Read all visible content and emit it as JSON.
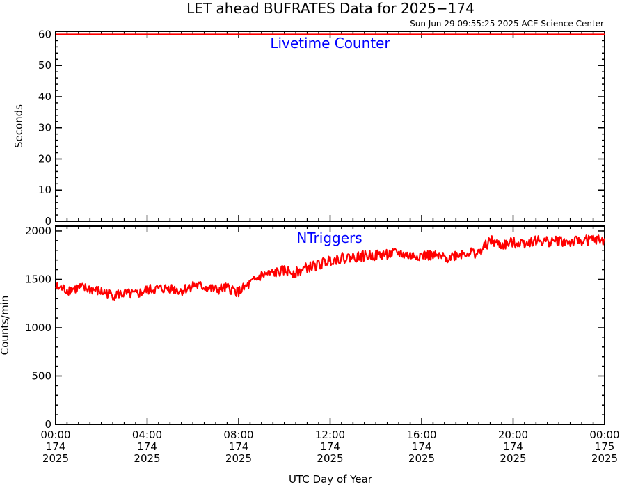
{
  "figure": {
    "title": "LET ahead BUFRATES Data for 2025−174",
    "timestamp": "Sun Jun 29 09:55:25 2025 ACE Science Center",
    "xlabel": "UTC Day of Year",
    "series_color": "#ff0000",
    "label_color": "#0000ff",
    "x_ticks": [
      {
        "hour": 0,
        "line1": "00:00",
        "line2": "174",
        "line3": "2025"
      },
      {
        "hour": 4,
        "line1": "04:00",
        "line2": "174",
        "line3": "2025"
      },
      {
        "hour": 8,
        "line1": "08:00",
        "line2": "174",
        "line3": "2025"
      },
      {
        "hour": 12,
        "line1": "12:00",
        "line2": "174",
        "line3": "2025"
      },
      {
        "hour": 16,
        "line1": "16:00",
        "line2": "174",
        "line3": "2025"
      },
      {
        "hour": 20,
        "line1": "20:00",
        "line2": "174",
        "line3": "2025"
      },
      {
        "hour": 24,
        "line1": "00:00",
        "line2": "175",
        "line3": "2025"
      }
    ]
  },
  "chart_data": [
    {
      "type": "line",
      "title": "Livetime Counter",
      "xlabel": "",
      "ylabel": "Seconds",
      "xlim": [
        0,
        24
      ],
      "ylim": [
        0,
        61
      ],
      "y_ticks": [
        0,
        10,
        20,
        30,
        40,
        50,
        60
      ],
      "series": [
        {
          "x": [
            0,
            24
          ],
          "values": [
            60,
            60
          ]
        }
      ]
    },
    {
      "type": "line",
      "title": "NTriggers",
      "xlabel": "UTC Day of Year",
      "ylabel": "Counts/min",
      "xlim": [
        0,
        24
      ],
      "ylim": [
        0,
        2050
      ],
      "y_ticks": [
        0,
        500,
        1000,
        1500,
        2000
      ],
      "series": [
        {
          "x": [
            0,
            0.5,
            1,
            1.5,
            2,
            2.5,
            3,
            3.5,
            4,
            4.5,
            5,
            5.5,
            6,
            6.5,
            7,
            7.5,
            8,
            8.5,
            9,
            9.5,
            10,
            10.5,
            11,
            11.5,
            12,
            12.5,
            13,
            13.5,
            14,
            14.5,
            15,
            15.5,
            16,
            16.5,
            17,
            17.5,
            18,
            18.5,
            19,
            19.5,
            20,
            20.5,
            21,
            21.5,
            22,
            22.5,
            23,
            23.5,
            24
          ],
          "values": [
            1420,
            1390,
            1410,
            1400,
            1370,
            1340,
            1350,
            1340,
            1390,
            1400,
            1410,
            1380,
            1440,
            1420,
            1390,
            1410,
            1370,
            1450,
            1540,
            1560,
            1590,
            1570,
            1620,
            1650,
            1700,
            1720,
            1730,
            1740,
            1750,
            1760,
            1770,
            1740,
            1750,
            1740,
            1720,
            1750,
            1780,
            1770,
            1900,
            1850,
            1880,
            1880,
            1900,
            1890,
            1900,
            1880,
            1900,
            1910,
            1900
          ]
        }
      ]
    }
  ]
}
